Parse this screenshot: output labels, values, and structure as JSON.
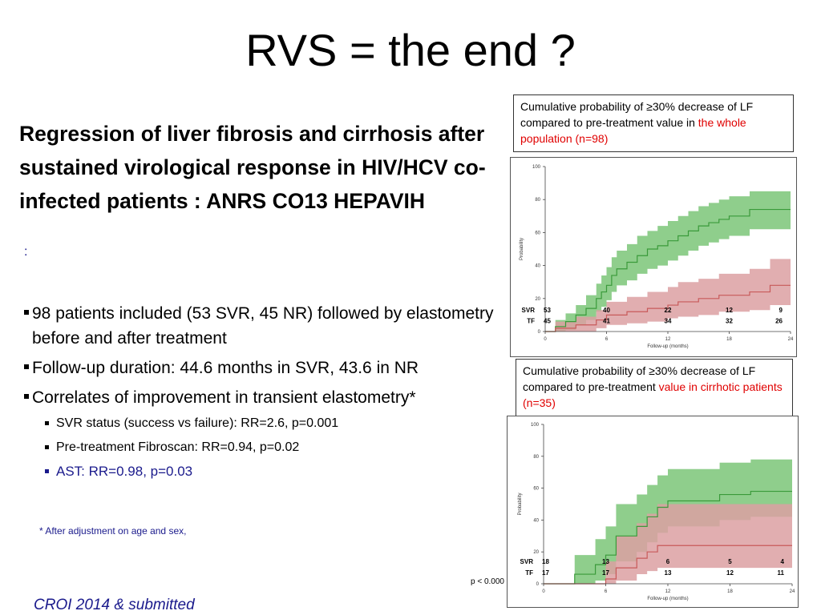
{
  "slide": {
    "title": "RVS = the end ?",
    "subtitle": "Regression of liver fibrosis and cirrhosis after sustained virological response in HIV/HCV co-infected patients : ANRS CO13 HEPAVIH",
    "colon": ":",
    "bullets": [
      "98 patients included (53 SVR, 45 NR) followed by elastometry before and after treatment",
      "Follow-up duration: 44.6 months in SVR, 43.6 in NR",
      "Correlates of improvement in transient elastometry*"
    ],
    "sub_bullets": [
      "SVR status (success vs failure): RR=2.6, p=0.001",
      "Pre-treatment Fibroscan: RR=0.94, p=0.02",
      "AST: RR=0.98, p=0.03"
    ],
    "footnote": "* After adjustment on age and sex,",
    "citation": "CROI 2014 & submitted",
    "p_value": "p < 0.000"
  },
  "captions": {
    "top": {
      "black": "Cumulative probability of ≥30% decrease of LF compared to pre-treatment value in ",
      "red": "the whole population (n=98)"
    },
    "bottom": {
      "black": "Cumulative probability of ≥30% decrease of LF compared to pre-treatment ",
      "red": "value in cirrhotic patients (n=35)"
    }
  },
  "colors": {
    "svr": "#3a9a3a",
    "svr_band": "#8fce8c",
    "tf": "#c85a5a",
    "tf_band": "#dca0a2",
    "overlap": "#76835a",
    "accent_blue": "#1a1a8c",
    "caption_red": "#e00000"
  },
  "chart_data": [
    {
      "type": "line",
      "xlabel": "Follow-up (months)",
      "ylabel": "Probability",
      "xlim": [
        0,
        24
      ],
      "ylim": [
        0,
        100
      ],
      "xticks": [
        0,
        6,
        12,
        18,
        24
      ],
      "yticks": [
        0,
        20,
        40,
        60,
        80,
        100
      ],
      "series": [
        {
          "name": "SVR",
          "x": [
            0,
            1,
            2,
            3,
            4,
            5,
            5.5,
            6,
            6.5,
            7,
            8,
            9,
            10,
            11,
            12,
            13,
            14,
            15,
            16,
            17,
            18,
            20,
            24
          ],
          "y": [
            0,
            3,
            6,
            10,
            14,
            20,
            24,
            28,
            34,
            38,
            42,
            46,
            50,
            52,
            55,
            58,
            61,
            64,
            66,
            68,
            70,
            74,
            74
          ],
          "lower": [
            0,
            0,
            1,
            4,
            7,
            12,
            15,
            19,
            24,
            28,
            31,
            35,
            38,
            40,
            43,
            46,
            49,
            52,
            54,
            56,
            58,
            62,
            62
          ],
          "upper": [
            0,
            7,
            11,
            16,
            22,
            29,
            34,
            39,
            45,
            49,
            53,
            58,
            61,
            64,
            67,
            70,
            73,
            76,
            78,
            80,
            82,
            85,
            85
          ]
        },
        {
          "name": "TF",
          "x": [
            0,
            1,
            3,
            5,
            6,
            8,
            10,
            12,
            13,
            15,
            17,
            18,
            20,
            22,
            24
          ],
          "y": [
            0,
            2,
            4,
            7,
            10,
            12,
            14,
            16,
            18,
            20,
            22,
            22,
            24,
            28,
            28
          ],
          "lower": [
            0,
            0,
            0,
            2,
            4,
            5,
            6,
            8,
            9,
            10,
            12,
            12,
            13,
            16,
            16
          ],
          "upper": [
            0,
            6,
            9,
            13,
            18,
            21,
            24,
            27,
            30,
            32,
            35,
            35,
            38,
            44,
            44
          ]
        }
      ],
      "at_risk": {
        "times": [
          0,
          6,
          12,
          18,
          24
        ],
        "SVR": [
          "53",
          "40",
          "22",
          "12",
          "9"
        ],
        "TF": [
          "45",
          "41",
          "34",
          "32",
          "26"
        ]
      }
    },
    {
      "type": "line",
      "xlabel": "Follow-up (months)",
      "ylabel": "Probability",
      "xlim": [
        0,
        24
      ],
      "ylim": [
        0,
        100
      ],
      "xticks": [
        0,
        6,
        12,
        18,
        24
      ],
      "yticks": [
        0,
        20,
        40,
        60,
        80,
        100
      ],
      "series": [
        {
          "name": "SVR",
          "x": [
            0,
            3,
            5,
            6,
            7,
            9,
            10,
            11,
            12,
            17,
            20,
            24
          ],
          "y": [
            0,
            6,
            12,
            18,
            30,
            36,
            42,
            48,
            52,
            56,
            58,
            58
          ],
          "lower": [
            0,
            0,
            2,
            6,
            14,
            20,
            26,
            32,
            36,
            40,
            42,
            42
          ],
          "upper": [
            0,
            18,
            28,
            36,
            50,
            56,
            62,
            68,
            72,
            76,
            78,
            78
          ]
        },
        {
          "name": "TF",
          "x": [
            0,
            6,
            7,
            9,
            10,
            11,
            12,
            24
          ],
          "y": [
            0,
            3,
            10,
            16,
            20,
            24,
            24,
            24
          ],
          "lower": [
            0,
            0,
            2,
            6,
            8,
            10,
            10,
            10
          ],
          "upper": [
            0,
            14,
            30,
            38,
            44,
            50,
            50,
            50
          ]
        }
      ],
      "at_risk": {
        "times": [
          0,
          6,
          12,
          18,
          24
        ],
        "SVR": [
          "18",
          "13",
          "6",
          "5",
          "4"
        ],
        "TF": [
          "17",
          "17",
          "13",
          "12",
          "11"
        ]
      }
    }
  ]
}
